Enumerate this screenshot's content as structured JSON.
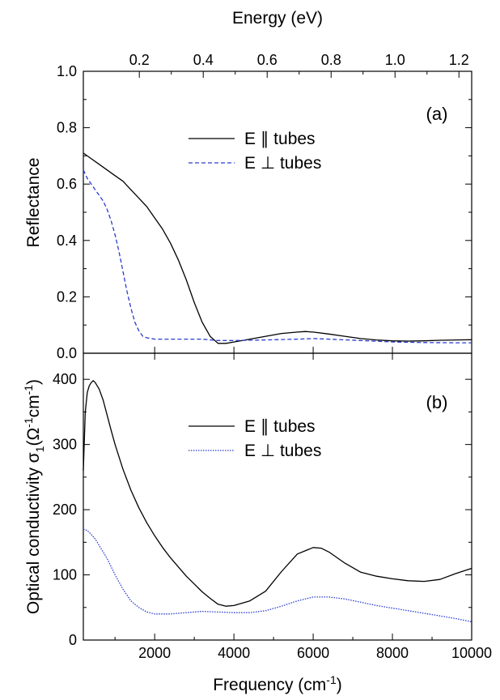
{
  "chart_data": [
    {
      "type": "line",
      "panel": "a",
      "panel_label": "(a)",
      "title": "",
      "xlabel": "Frequency",
      "xlabel_unit_base": "(cm",
      "xlabel_unit_sup": "-1",
      "xlabel_unit_end": ")",
      "top_xlabel": "Energy (eV)",
      "ylabel": "Reflectance",
      "xlim": [
        200,
        10000
      ],
      "ylim": [
        0.0,
        1.0
      ],
      "yticks": [
        "0.0",
        "0.2",
        "0.4",
        "0.6",
        "0.8",
        "1.0"
      ],
      "top_xticks": [
        "0.2",
        "0.4",
        "0.6",
        "0.8",
        "1.0",
        "1.2"
      ],
      "top_xticks_ev": [
        0.2,
        0.4,
        0.6,
        0.8,
        1.0,
        1.2
      ],
      "legend_position": "upper-center",
      "series": [
        {
          "name": "E ∥ tubes",
          "color": "#000000",
          "style": "solid",
          "x": [
            200,
            400,
            600,
            800,
            1000,
            1200,
            1400,
            1600,
            1800,
            2000,
            2200,
            2400,
            2600,
            2800,
            3000,
            3200,
            3400,
            3600,
            3800,
            4000,
            4400,
            4800,
            5200,
            5600,
            5800,
            6000,
            6400,
            6800,
            7200,
            7600,
            8000,
            8400,
            8800,
            9200,
            9600,
            10000
          ],
          "y": [
            0.71,
            0.69,
            0.67,
            0.65,
            0.63,
            0.61,
            0.58,
            0.55,
            0.52,
            0.48,
            0.44,
            0.39,
            0.33,
            0.26,
            0.18,
            0.11,
            0.06,
            0.035,
            0.035,
            0.04,
            0.05,
            0.06,
            0.07,
            0.075,
            0.077,
            0.075,
            0.068,
            0.06,
            0.052,
            0.047,
            0.044,
            0.043,
            0.044,
            0.046,
            0.047,
            0.048
          ]
        },
        {
          "name": "E ⊥ tubes",
          "color": "#2a3ccf",
          "style": "dashed",
          "x": [
            200,
            300,
            400,
            500,
            600,
            700,
            800,
            900,
            1000,
            1100,
            1200,
            1300,
            1400,
            1500,
            1600,
            1700,
            1800,
            2000,
            2400,
            2800,
            3200,
            3600,
            4000,
            4800,
            5600,
            6000,
            6400,
            7200,
            8000,
            8800,
            9600,
            10000
          ],
          "y": [
            0.65,
            0.62,
            0.6,
            0.58,
            0.56,
            0.54,
            0.51,
            0.47,
            0.42,
            0.36,
            0.29,
            0.22,
            0.16,
            0.11,
            0.08,
            0.06,
            0.055,
            0.05,
            0.05,
            0.05,
            0.05,
            0.045,
            0.045,
            0.047,
            0.05,
            0.052,
            0.05,
            0.045,
            0.04,
            0.038,
            0.037,
            0.037
          ]
        }
      ]
    },
    {
      "type": "line",
      "panel": "b",
      "panel_label": "(b)",
      "title": "",
      "xlabel": "Frequency",
      "xlabel_unit_base": "(cm",
      "xlabel_unit_sup": "-1",
      "xlabel_unit_end": ")",
      "ylabel_main": "Optical conductivity σ",
      "ylabel_sub": "1",
      "ylabel_unit": "(Ω",
      "ylabel_unit_sup1": "-1",
      "ylabel_unit_mid": "cm",
      "ylabel_unit_sup2": "-1",
      "ylabel_unit_end": ")",
      "xlim": [
        200,
        10000
      ],
      "ylim": [
        0,
        440
      ],
      "xticks": [
        "2000",
        "4000",
        "6000",
        "8000",
        "10000"
      ],
      "xtick_values": [
        2000,
        4000,
        6000,
        8000,
        10000
      ],
      "yticks": [
        "0",
        "100",
        "200",
        "300",
        "400"
      ],
      "ytick_values": [
        0,
        100,
        200,
        300,
        400
      ],
      "legend_position": "upper-center",
      "series": [
        {
          "name": "E ∥ tubes",
          "color": "#000000",
          "style": "solid",
          "x": [
            200,
            250,
            300,
            350,
            400,
            450,
            500,
            600,
            700,
            800,
            900,
            1000,
            1200,
            1400,
            1600,
            1800,
            2000,
            2200,
            2400,
            2600,
            2800,
            3000,
            3200,
            3400,
            3600,
            3800,
            4000,
            4400,
            4800,
            5200,
            5600,
            6000,
            6200,
            6400,
            6800,
            7200,
            7600,
            8000,
            8400,
            8800,
            9200,
            9600,
            10000
          ],
          "y": [
            260,
            350,
            380,
            390,
            395,
            398,
            395,
            385,
            368,
            345,
            322,
            300,
            262,
            230,
            203,
            180,
            160,
            142,
            126,
            112,
            98,
            86,
            74,
            64,
            55,
            52,
            53,
            60,
            75,
            105,
            132,
            142,
            141,
            135,
            118,
            104,
            98,
            94,
            91,
            90,
            93,
            102,
            110
          ]
        },
        {
          "name": "E ⊥ tubes",
          "color": "#2a3ccf",
          "style": "dotted",
          "x": [
            200,
            300,
            400,
            500,
            600,
            800,
            1000,
            1200,
            1400,
            1600,
            1800,
            2000,
            2400,
            2800,
            3200,
            3600,
            4000,
            4400,
            4800,
            5200,
            5600,
            6000,
            6400,
            6800,
            7200,
            7600,
            8000,
            8400,
            8800,
            9200,
            9600,
            10000
          ],
          "y": [
            170,
            168,
            162,
            155,
            145,
            125,
            100,
            78,
            60,
            50,
            43,
            40,
            40,
            42,
            44,
            43,
            42,
            42,
            45,
            52,
            60,
            66,
            66,
            63,
            58,
            53,
            49,
            45,
            41,
            37,
            33,
            28
          ]
        }
      ]
    }
  ]
}
